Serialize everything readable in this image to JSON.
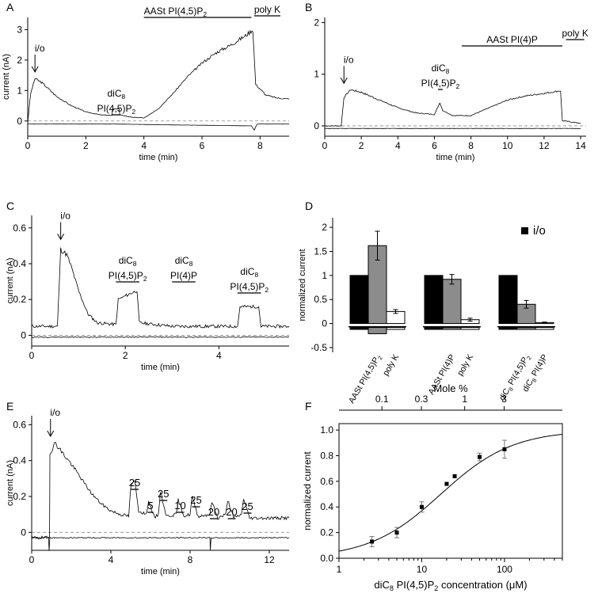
{
  "figure": {
    "panel_letters": [
      "A",
      "B",
      "C",
      "D",
      "E",
      "F"
    ]
  },
  "chart_data": [
    {
      "panel": "A",
      "type": "line",
      "xlabel": "time (min)",
      "ylabel": "current (nA)",
      "xlim": [
        0,
        9
      ],
      "ylim": [
        -0.5,
        3.4
      ],
      "xticks": [
        0,
        2,
        4,
        6,
        8
      ],
      "yticks": [
        0,
        1,
        2,
        3
      ],
      "series": [
        {
          "name": "trace",
          "points": [
            [
              0.0,
              -0.05
            ],
            [
              0.1,
              0.9
            ],
            [
              0.25,
              1.4
            ],
            [
              0.5,
              1.25
            ],
            [
              1.0,
              0.8
            ],
            [
              1.5,
              0.5
            ],
            [
              2.0,
              0.3
            ],
            [
              2.5,
              0.2
            ],
            [
              2.9,
              0.18
            ],
            [
              2.92,
              0.4
            ],
            [
              3.15,
              0.4
            ],
            [
              3.17,
              0.2
            ],
            [
              3.6,
              0.12
            ],
            [
              4.0,
              0.1
            ],
            [
              4.5,
              0.4
            ],
            [
              5.0,
              0.9
            ],
            [
              5.5,
              1.45
            ],
            [
              6.0,
              1.9
            ],
            [
              6.5,
              2.25
            ],
            [
              7.0,
              2.5
            ],
            [
              7.5,
              2.8
            ],
            [
              7.75,
              3.0
            ],
            [
              7.85,
              1.2
            ],
            [
              8.2,
              0.85
            ],
            [
              8.6,
              0.75
            ],
            [
              9.0,
              0.72
            ]
          ]
        },
        {
          "name": "baseline",
          "points": [
            [
              0.0,
              -0.1
            ],
            [
              3.0,
              -0.1
            ],
            [
              5.0,
              -0.13
            ],
            [
              7.7,
              -0.16
            ],
            [
              7.8,
              -0.3
            ],
            [
              7.9,
              -0.1
            ],
            [
              9.0,
              -0.1
            ]
          ]
        }
      ],
      "annotations": [
        {
          "type": "arrow",
          "label": "i/o",
          "x": 0.25,
          "y": 1.4
        },
        {
          "type": "bar",
          "label": "diC8 PI(4,5)P2",
          "x": [
            2.9,
            3.2
          ]
        },
        {
          "type": "bar",
          "label": "AASt PI(4,5)P2",
          "x": [
            4.0,
            7.7
          ]
        },
        {
          "type": "bar",
          "label": "poly K",
          "x": [
            7.8,
            8.7
          ]
        }
      ]
    },
    {
      "panel": "B",
      "type": "line",
      "xlabel": "time (min)",
      "ylabel": "",
      "xlim": [
        0,
        14.3
      ],
      "ylim": [
        -0.2,
        2.1
      ],
      "xticks": [
        0,
        2,
        4,
        6,
        8,
        10,
        12,
        14
      ],
      "yticks": [
        0,
        1,
        2
      ],
      "series": [
        {
          "name": "trace",
          "points": [
            [
              0.0,
              0.0
            ],
            [
              0.9,
              0.0
            ],
            [
              1.05,
              0.55
            ],
            [
              1.4,
              0.7
            ],
            [
              2.0,
              0.65
            ],
            [
              3.0,
              0.5
            ],
            [
              4.0,
              0.35
            ],
            [
              5.0,
              0.25
            ],
            [
              6.0,
              0.22
            ],
            [
              6.3,
              0.45
            ],
            [
              6.45,
              0.3
            ],
            [
              7.0,
              0.2
            ],
            [
              8.0,
              0.2
            ],
            [
              9.0,
              0.35
            ],
            [
              10.0,
              0.5
            ],
            [
              11.0,
              0.58
            ],
            [
              12.0,
              0.63
            ],
            [
              12.9,
              0.68
            ],
            [
              13.0,
              0.1
            ],
            [
              14.0,
              0.05
            ]
          ]
        },
        {
          "name": "baseline",
          "points": [
            [
              0.0,
              -0.05
            ],
            [
              14.0,
              -0.05
            ]
          ]
        }
      ],
      "annotations": [
        {
          "type": "arrow",
          "label": "i/o",
          "x": 1.05,
          "y": 0.7
        },
        {
          "type": "bar",
          "label": "diC8 PI(4,5)P2",
          "x": [
            6.2,
            6.45
          ]
        },
        {
          "type": "bar",
          "label": "AASt PI(4)P",
          "x": [
            7.5,
            13.0
          ]
        },
        {
          "type": "bar",
          "label": "poly K",
          "x": [
            13.2,
            14.2
          ]
        }
      ]
    },
    {
      "panel": "C",
      "type": "line",
      "xlabel": "time (min)",
      "ylabel": "current (nA)",
      "xlim": [
        0,
        5.5
      ],
      "ylim": [
        -0.06,
        0.67
      ],
      "xticks": [
        0,
        2,
        4
      ],
      "yticks": [
        0,
        0.2,
        0.4,
        0.6
      ],
      "series": [
        {
          "name": "trace",
          "points": [
            [
              0.0,
              0.05
            ],
            [
              0.55,
              0.05
            ],
            [
              0.62,
              0.48
            ],
            [
              0.75,
              0.45
            ],
            [
              0.85,
              0.38
            ],
            [
              1.0,
              0.25
            ],
            [
              1.2,
              0.12
            ],
            [
              1.4,
              0.07
            ],
            [
              1.8,
              0.06
            ],
            [
              1.85,
              0.2
            ],
            [
              2.0,
              0.22
            ],
            [
              2.25,
              0.25
            ],
            [
              2.3,
              0.07
            ],
            [
              3.0,
              0.05
            ],
            [
              4.0,
              0.05
            ],
            [
              4.4,
              0.05
            ],
            [
              4.45,
              0.16
            ],
            [
              4.85,
              0.16
            ],
            [
              4.9,
              0.05
            ],
            [
              5.5,
              0.05
            ]
          ]
        },
        {
          "name": "baseline",
          "points": [
            [
              0.0,
              -0.01
            ],
            [
              5.5,
              -0.01
            ]
          ]
        }
      ],
      "annotations": [
        {
          "type": "arrow",
          "label": "i/o",
          "x": 0.62,
          "y": 0.5
        },
        {
          "type": "bar",
          "label": "diC8 PI(4,5)P2",
          "x": [
            1.8,
            2.3
          ]
        },
        {
          "type": "bar",
          "label": "diC8 PI(4)P",
          "x": [
            3.0,
            3.5
          ]
        },
        {
          "type": "bar",
          "label": "diC8 PI(4,5)P2",
          "x": [
            4.4,
            4.9
          ]
        }
      ]
    },
    {
      "panel": "D",
      "type": "bar",
      "ylabel": "normalized current",
      "ylim": [
        -0.6,
        2.2
      ],
      "yticks": [
        -0.5,
        0,
        0.5,
        1,
        1.5,
        2
      ],
      "legend": "i/o",
      "groups": [
        {
          "bars": [
            {
              "label": "",
              "value": 1.0,
              "color": "#000000",
              "error": 0
            },
            {
              "label": "AASt PI(4,5)P2",
              "value": 1.62,
              "color": "#8c8c8c",
              "error": 0.3
            },
            {
              "label": "poly K",
              "value": 0.25,
              "color": "#ffffff",
              "error": 0.04
            }
          ]
        },
        {
          "bars": [
            {
              "label": "",
              "value": 1.0,
              "color": "#000000",
              "error": 0
            },
            {
              "label": "AASt PI(4)P",
              "value": 0.92,
              "color": "#8c8c8c",
              "error": 0.1
            },
            {
              "label": "poly K",
              "value": 0.08,
              "color": "#ffffff",
              "error": 0.03
            }
          ]
        },
        {
          "bars": [
            {
              "label": "",
              "value": 1.0,
              "color": "#000000",
              "error": 0
            },
            {
              "label": "diC8 PI(4,5)P2",
              "value": 0.4,
              "color": "#8c8c8c",
              "error": 0.08
            },
            {
              "label": "diC8 PI(4)P",
              "value": 0.02,
              "color": "#ffffff",
              "error": 0.01
            }
          ]
        }
      ]
    },
    {
      "panel": "E",
      "type": "line",
      "xlabel": "time (min)",
      "ylabel": "current (nA)",
      "xlim": [
        0,
        13
      ],
      "ylim": [
        -0.1,
        0.65
      ],
      "xticks": [
        0,
        4,
        8,
        12
      ],
      "yticks": [
        0,
        0.2,
        0.4,
        0.6
      ],
      "series": [
        {
          "name": "trace",
          "points": [
            [
              0.0,
              -0.03
            ],
            [
              0.9,
              -0.03
            ],
            [
              0.92,
              0.44
            ],
            [
              1.2,
              0.5
            ],
            [
              1.5,
              0.45
            ],
            [
              2.0,
              0.38
            ],
            [
              2.5,
              0.3
            ],
            [
              3.0,
              0.22
            ],
            [
              3.5,
              0.16
            ],
            [
              4.0,
              0.12
            ],
            [
              4.5,
              0.1
            ],
            [
              4.9,
              0.09
            ],
            [
              5.0,
              0.25
            ],
            [
              5.2,
              0.29
            ],
            [
              5.4,
              0.12
            ],
            [
              5.8,
              0.1
            ],
            [
              5.9,
              0.18
            ],
            [
              6.2,
              0.08
            ],
            [
              6.4,
              0.1
            ],
            [
              6.5,
              0.23
            ],
            [
              6.8,
              0.09
            ],
            [
              7.3,
              0.1
            ],
            [
              7.4,
              0.18
            ],
            [
              7.7,
              0.09
            ],
            [
              8.0,
              0.1
            ],
            [
              8.1,
              0.2
            ],
            [
              8.4,
              0.09
            ],
            [
              9.0,
              0.1
            ],
            [
              9.1,
              0.17
            ],
            [
              9.4,
              0.08
            ],
            [
              9.8,
              0.1
            ],
            [
              9.9,
              0.18
            ],
            [
              10.2,
              0.08
            ],
            [
              10.6,
              0.1
            ],
            [
              10.7,
              0.19
            ],
            [
              11.0,
              0.08
            ],
            [
              13.0,
              0.08
            ]
          ]
        },
        {
          "name": "baseline",
          "points": [
            [
              0.0,
              -0.03
            ],
            [
              0.85,
              -0.03
            ],
            [
              0.88,
              -0.1
            ],
            [
              0.92,
              -0.03
            ],
            [
              9.0,
              -0.03
            ],
            [
              9.02,
              -0.1
            ],
            [
              9.06,
              -0.03
            ],
            [
              13.0,
              -0.03
            ]
          ]
        }
      ],
      "annotations": [
        {
          "type": "arrow",
          "label": "i/o",
          "x": 0.95,
          "y": 0.5
        },
        {
          "type": "bar",
          "label": "25",
          "x": [
            5.0,
            5.4
          ]
        },
        {
          "type": "bar",
          "label": "5",
          "x": [
            5.85,
            6.15
          ]
        },
        {
          "type": "bar",
          "label": "25",
          "x": [
            6.45,
            6.85
          ]
        },
        {
          "type": "bar",
          "label": "10",
          "x": [
            7.3,
            7.7
          ]
        },
        {
          "type": "bar",
          "label": "25",
          "x": [
            8.1,
            8.5
          ]
        },
        {
          "type": "bar",
          "label": "20",
          "x": [
            9.0,
            9.4
          ]
        },
        {
          "type": "bar",
          "label": "20",
          "x": [
            9.9,
            10.3
          ]
        },
        {
          "type": "bar",
          "label": "25",
          "x": [
            10.7,
            11.1
          ]
        }
      ]
    },
    {
      "panel": "F",
      "type": "scatter",
      "xlabel": "diC8 PI(4,5)P2 concentration (μM)",
      "ylabel": "normalized current",
      "x2label": "Mole %",
      "xscale": "log",
      "xlim": [
        1,
        500
      ],
      "ylim": [
        0,
        1.05
      ],
      "xticks": [
        1,
        10,
        100
      ],
      "yticks": [
        0,
        0.2,
        0.4,
        0.6,
        0.8,
        1.0
      ],
      "x2ticks": [
        0.1,
        0.3,
        1,
        3
      ],
      "points": [
        {
          "x": 2.5,
          "y": 0.13,
          "err": 0.04
        },
        {
          "x": 5,
          "y": 0.2,
          "err": 0.04
        },
        {
          "x": 10,
          "y": 0.4,
          "err": 0.04
        },
        {
          "x": 20,
          "y": 0.58,
          "err": 0.0
        },
        {
          "x": 25,
          "y": 0.64,
          "err": 0.0
        },
        {
          "x": 50,
          "y": 0.79,
          "err": 0.03
        },
        {
          "x": 100,
          "y": 0.85,
          "err": 0.07
        }
      ],
      "fit": {
        "type": "hill",
        "k": 17.0,
        "n": 1.0
      }
    }
  ]
}
